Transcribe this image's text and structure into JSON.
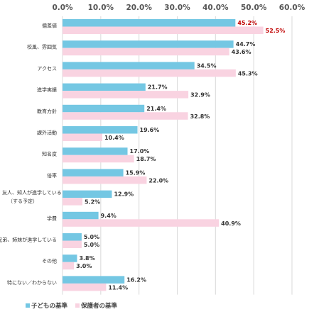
{
  "chart_data": {
    "type": "bar",
    "orientation": "horizontal",
    "xlim": [
      0,
      60
    ],
    "ticks": [
      "0.0%",
      "10.0%",
      "20.0%",
      "30.0%",
      "40.0%",
      "50.0%",
      "60.0%"
    ],
    "grid": true,
    "legend_position": "bottom-left",
    "categories": [
      "偏差値",
      "校風、雰囲気",
      "アクセス",
      "進学実績",
      "教育方針",
      "課外活動",
      "知名度",
      "倍率",
      "友人、知人が進学している\n（する予定）",
      "学費",
      "兄弟、姉妹が進学している",
      "その他",
      "特にない／わからない"
    ],
    "series": [
      {
        "name": "子どもの基準",
        "color": "#74c7e3",
        "values": [
          45.2,
          44.7,
          34.5,
          21.7,
          21.4,
          19.6,
          17.0,
          15.9,
          12.9,
          9.4,
          5.0,
          3.8,
          16.2
        ],
        "labels": [
          "45.2%",
          "44.7%",
          "34.5%",
          "21.7%",
          "21.4%",
          "19.6%",
          "17.0%",
          "15.9%",
          "12.9%",
          "9.4%",
          "5.0%",
          "3.8%",
          "16.2%"
        ]
      },
      {
        "name": "保護者の基準",
        "color": "#f9d3e1",
        "values": [
          52.5,
          43.6,
          45.3,
          32.9,
          32.8,
          10.4,
          18.7,
          22.0,
          5.2,
          40.9,
          5.0,
          3.0,
          11.4
        ],
        "labels": [
          "52.5%",
          "43.6%",
          "45.3%",
          "32.9%",
          "32.8%",
          "10.4%",
          "18.7%",
          "22.0%",
          "5.2%",
          "40.9%",
          "5.0%",
          "3.0%",
          "11.4%"
        ]
      }
    ],
    "highlight_color": "#c00000",
    "highlight_category_index": 0
  }
}
